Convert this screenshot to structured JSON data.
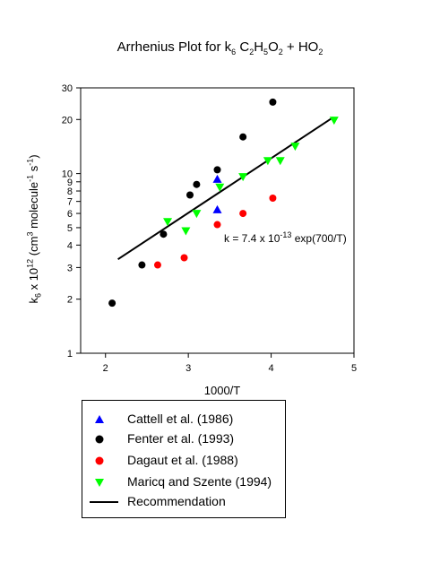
{
  "chart_data": {
    "type": "scatter",
    "title": {
      "pre": "Arrhenius Plot for k",
      "sub1": "6",
      "mid1": " C",
      "sub2": "2",
      "mid2": "H",
      "sub3": "5",
      "mid3": "O",
      "sub4": "2",
      "post": " + HO",
      "sub5": "2"
    },
    "xlabel": "1000/T",
    "ylabel": {
      "k": "k",
      "sub": "6",
      "x10": " x 10",
      "sup1": "12",
      "unit1": " (cm",
      "sup2": "3",
      "unit2": " molecule",
      "sup3": "-1",
      "unit3": " s",
      "sup4": "-1",
      "close": ")"
    },
    "annotation": {
      "pre": "k = 7.4 x 10",
      "sup": "-13",
      "post": " exp(700/T)"
    },
    "xlim": [
      1.7,
      5.0
    ],
    "ylim": [
      1,
      30
    ],
    "yscale": "log",
    "x_ticks": [
      "2",
      "3",
      "4",
      "5"
    ],
    "y_ticks": [
      "1",
      "2",
      "3",
      "4",
      "5",
      "6",
      "7",
      "8",
      "9",
      "10",
      "20",
      "30"
    ],
    "legend_position": "below",
    "series": [
      {
        "name": "Cattell et al. (1986)",
        "marker": "triangle-up",
        "color": "#0000ff",
        "points": [
          [
            3.35,
            9.3
          ],
          [
            3.35,
            6.3
          ]
        ]
      },
      {
        "name": "Fenter et al. (1993)",
        "marker": "circle",
        "color": "#000000",
        "points": [
          [
            2.08,
            1.9
          ],
          [
            2.44,
            3.1
          ],
          [
            2.7,
            4.6
          ],
          [
            3.02,
            7.6
          ],
          [
            3.1,
            8.7
          ],
          [
            3.35,
            10.5
          ],
          [
            3.66,
            16.0
          ],
          [
            4.02,
            25.0
          ]
        ]
      },
      {
        "name": "Dagaut et al. (1988)",
        "marker": "circle",
        "color": "#ff0000",
        "points": [
          [
            2.63,
            3.1
          ],
          [
            2.95,
            3.4
          ],
          [
            3.35,
            5.2
          ],
          [
            3.66,
            6.0
          ],
          [
            4.02,
            7.3
          ]
        ]
      },
      {
        "name": "Maricq and Szente (1994)",
        "marker": "triangle-down",
        "color": "#00ff00",
        "points": [
          [
            2.75,
            5.4
          ],
          [
            2.97,
            4.8
          ],
          [
            3.1,
            6.0
          ],
          [
            3.38,
            8.4
          ],
          [
            3.66,
            9.6
          ],
          [
            3.96,
            11.8
          ],
          [
            4.11,
            11.8
          ],
          [
            4.29,
            14.2
          ],
          [
            4.76,
            19.8
          ]
        ]
      },
      {
        "name": "Recommendation",
        "marker": "line",
        "color": "#000000",
        "A": 0.74,
        "E_over_R": 700,
        "x_range": [
          2.15,
          4.75
        ]
      }
    ]
  }
}
